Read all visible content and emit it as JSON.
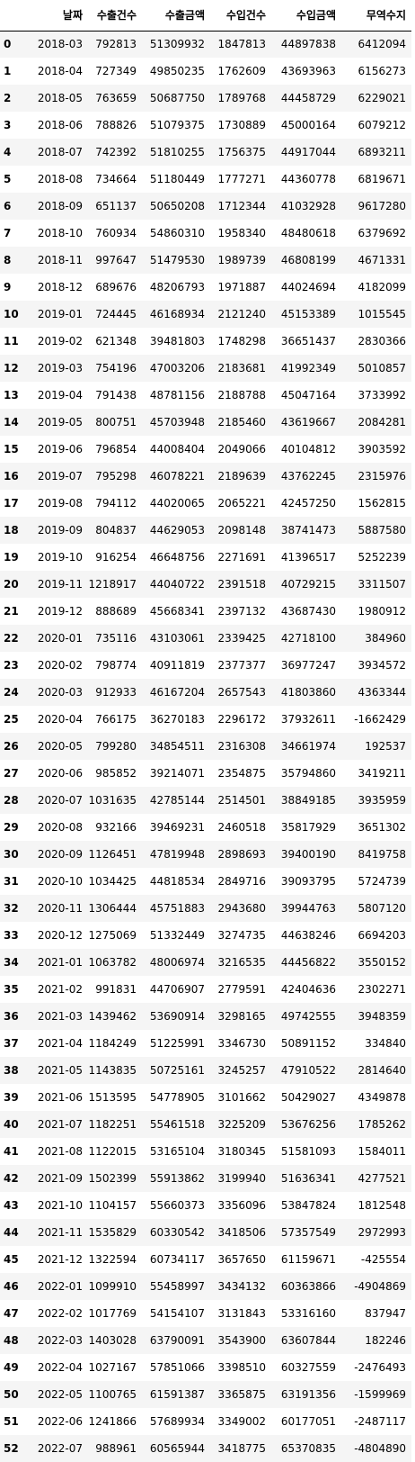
{
  "table": {
    "index_header": "",
    "columns": [
      "날짜",
      "수출건수",
      "수출금액",
      "수입건수",
      "수입금액",
      "무역수지"
    ],
    "rows": [
      [
        "0",
        "2018-03",
        "792813",
        "51309932",
        "1847813",
        "44897838",
        "6412094"
      ],
      [
        "1",
        "2018-04",
        "727349",
        "49850235",
        "1762609",
        "43693963",
        "6156273"
      ],
      [
        "2",
        "2018-05",
        "763659",
        "50687750",
        "1789768",
        "44458729",
        "6229021"
      ],
      [
        "3",
        "2018-06",
        "788826",
        "51079375",
        "1730889",
        "45000164",
        "6079212"
      ],
      [
        "4",
        "2018-07",
        "742392",
        "51810255",
        "1756375",
        "44917044",
        "6893211"
      ],
      [
        "5",
        "2018-08",
        "734664",
        "51180449",
        "1777271",
        "44360778",
        "6819671"
      ],
      [
        "6",
        "2018-09",
        "651137",
        "50650208",
        "1712344",
        "41032928",
        "9617280"
      ],
      [
        "7",
        "2018-10",
        "760934",
        "54860310",
        "1958340",
        "48480618",
        "6379692"
      ],
      [
        "8",
        "2018-11",
        "997647",
        "51479530",
        "1989739",
        "46808199",
        "4671331"
      ],
      [
        "9",
        "2018-12",
        "689676",
        "48206793",
        "1971887",
        "44024694",
        "4182099"
      ],
      [
        "10",
        "2019-01",
        "724445",
        "46168934",
        "2121240",
        "45153389",
        "1015545"
      ],
      [
        "11",
        "2019-02",
        "621348",
        "39481803",
        "1748298",
        "36651437",
        "2830366"
      ],
      [
        "12",
        "2019-03",
        "754196",
        "47003206",
        "2183681",
        "41992349",
        "5010857"
      ],
      [
        "13",
        "2019-04",
        "791438",
        "48781156",
        "2188788",
        "45047164",
        "3733992"
      ],
      [
        "14",
        "2019-05",
        "800751",
        "45703948",
        "2185460",
        "43619667",
        "2084281"
      ],
      [
        "15",
        "2019-06",
        "796854",
        "44008404",
        "2049066",
        "40104812",
        "3903592"
      ],
      [
        "16",
        "2019-07",
        "795298",
        "46078221",
        "2189639",
        "43762245",
        "2315976"
      ],
      [
        "17",
        "2019-08",
        "794112",
        "44020065",
        "2065221",
        "42457250",
        "1562815"
      ],
      [
        "18",
        "2019-09",
        "804837",
        "44629053",
        "2098148",
        "38741473",
        "5887580"
      ],
      [
        "19",
        "2019-10",
        "916254",
        "46648756",
        "2271691",
        "41396517",
        "5252239"
      ],
      [
        "20",
        "2019-11",
        "1218917",
        "44040722",
        "2391518",
        "40729215",
        "3311507"
      ],
      [
        "21",
        "2019-12",
        "888689",
        "45668341",
        "2397132",
        "43687430",
        "1980912"
      ],
      [
        "22",
        "2020-01",
        "735116",
        "43103061",
        "2339425",
        "42718100",
        "384960"
      ],
      [
        "23",
        "2020-02",
        "798774",
        "40911819",
        "2377377",
        "36977247",
        "3934572"
      ],
      [
        "24",
        "2020-03",
        "912933",
        "46167204",
        "2657543",
        "41803860",
        "4363344"
      ],
      [
        "25",
        "2020-04",
        "766175",
        "36270183",
        "2296172",
        "37932611",
        "-1662429"
      ],
      [
        "26",
        "2020-05",
        "799280",
        "34854511",
        "2316308",
        "34661974",
        "192537"
      ],
      [
        "27",
        "2020-06",
        "985852",
        "39214071",
        "2354875",
        "35794860",
        "3419211"
      ],
      [
        "28",
        "2020-07",
        "1031635",
        "42785144",
        "2514501",
        "38849185",
        "3935959"
      ],
      [
        "29",
        "2020-08",
        "932166",
        "39469231",
        "2460518",
        "35817929",
        "3651302"
      ],
      [
        "30",
        "2020-09",
        "1126451",
        "47819948",
        "2898693",
        "39400190",
        "8419758"
      ],
      [
        "31",
        "2020-10",
        "1034425",
        "44818534",
        "2849716",
        "39093795",
        "5724739"
      ],
      [
        "32",
        "2020-11",
        "1306444",
        "45751883",
        "2943680",
        "39944763",
        "5807120"
      ],
      [
        "33",
        "2020-12",
        "1275069",
        "51332449",
        "3274735",
        "44638246",
        "6694203"
      ],
      [
        "34",
        "2021-01",
        "1063782",
        "48006974",
        "3216535",
        "44456822",
        "3550152"
      ],
      [
        "35",
        "2021-02",
        "991831",
        "44706907",
        "2779591",
        "42404636",
        "2302271"
      ],
      [
        "36",
        "2021-03",
        "1439462",
        "53690914",
        "3298165",
        "49742555",
        "3948359"
      ],
      [
        "37",
        "2021-04",
        "1184249",
        "51225991",
        "3346730",
        "50891152",
        "334840"
      ],
      [
        "38",
        "2021-05",
        "1143835",
        "50725161",
        "3245257",
        "47910522",
        "2814640"
      ],
      [
        "39",
        "2021-06",
        "1513595",
        "54778905",
        "3101662",
        "50429027",
        "4349878"
      ],
      [
        "40",
        "2021-07",
        "1182251",
        "55461518",
        "3225209",
        "53676256",
        "1785262"
      ],
      [
        "41",
        "2021-08",
        "1122015",
        "53165104",
        "3180345",
        "51581093",
        "1584011"
      ],
      [
        "42",
        "2021-09",
        "1502399",
        "55913862",
        "3199940",
        "51636341",
        "4277521"
      ],
      [
        "43",
        "2021-10",
        "1104157",
        "55660373",
        "3356096",
        "53847824",
        "1812548"
      ],
      [
        "44",
        "2021-11",
        "1535829",
        "60330542",
        "3418506",
        "57357549",
        "2972993"
      ],
      [
        "45",
        "2021-12",
        "1322594",
        "60734117",
        "3657650",
        "61159671",
        "-425554"
      ],
      [
        "46",
        "2022-01",
        "1099910",
        "55458997",
        "3434132",
        "60363866",
        "-4904869"
      ],
      [
        "47",
        "2022-02",
        "1017769",
        "54154107",
        "3131843",
        "53316160",
        "837947"
      ],
      [
        "48",
        "2022-03",
        "1403028",
        "63790091",
        "3543900",
        "63607844",
        "182246"
      ],
      [
        "49",
        "2022-04",
        "1027167",
        "57851066",
        "3398510",
        "60327559",
        "-2476493"
      ],
      [
        "50",
        "2022-05",
        "1100765",
        "61591387",
        "3365875",
        "63191356",
        "-1599969"
      ],
      [
        "51",
        "2022-06",
        "1241866",
        "57689934",
        "3349002",
        "60177051",
        "-2487117"
      ],
      [
        "52",
        "2022-07",
        "988961",
        "60565944",
        "3418775",
        "65370835",
        "-4804890"
      ]
    ]
  }
}
